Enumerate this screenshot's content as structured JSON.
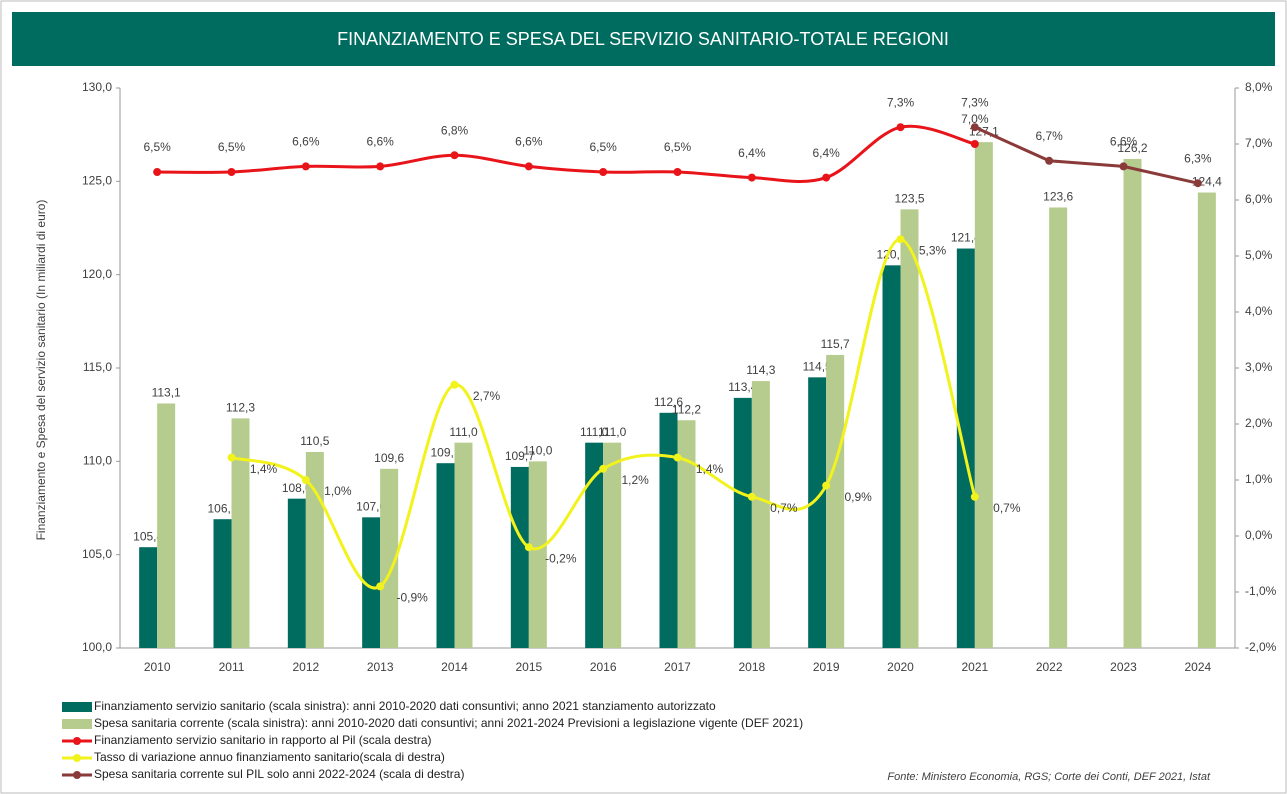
{
  "chart_data": {
    "type": "bar",
    "title": "FINANZIAMENTO E SPESA DEL SERVIZIO SANITARIO-TOTALE REGIONI",
    "y_label": "Finanziamento e Spesa del servizio sanitario (In miliardi di euro)",
    "source": "Fonte: Ministero Economia, RGS; Corte dei Conti, DEF 2021, Istat",
    "categories": [
      "2010",
      "2011",
      "2012",
      "2013",
      "2014",
      "2015",
      "2016",
      "2017",
      "2018",
      "2019",
      "2020",
      "2021",
      "2022",
      "2023",
      "2024"
    ],
    "ylim": [
      100,
      130
    ],
    "yticks": [
      {
        "value": 100,
        "label": "100,0"
      },
      {
        "value": 105,
        "label": "105,0"
      },
      {
        "value": 110,
        "label": "110,0"
      },
      {
        "value": 115,
        "label": "115,0"
      },
      {
        "value": 120,
        "label": "120,0"
      },
      {
        "value": 125,
        "label": "125,0"
      },
      {
        "value": 130,
        "label": "130,0"
      }
    ],
    "y2lim": [
      -2,
      8
    ],
    "y2ticks": [
      {
        "value": -2,
        "label": "-2,0%"
      },
      {
        "value": -1,
        "label": "-1,0%"
      },
      {
        "value": 0,
        "label": "0,0%"
      },
      {
        "value": 1,
        "label": "1,0%"
      },
      {
        "value": 2,
        "label": "2,0%"
      },
      {
        "value": 3,
        "label": "3,0%"
      },
      {
        "value": 4,
        "label": "4,0%"
      },
      {
        "value": 5,
        "label": "5,0%"
      },
      {
        "value": 6,
        "label": "6,0%"
      },
      {
        "value": 7,
        "label": "7,0%"
      },
      {
        "value": 8,
        "label": "8,0%"
      }
    ],
    "series": [
      {
        "name": "Finanziamento servizio sanitario (scala sinistra): anni 2010-2020 dati consuntivi; anno 2021 stanziamento autorizzato",
        "type": "bar",
        "color": "#006b5f",
        "values": [
          105.4,
          106.9,
          108.0,
          107.0,
          109.9,
          109.7,
          111.0,
          112.6,
          113.4,
          114.5,
          120.5,
          121.4,
          null,
          null,
          null
        ],
        "value_labels": [
          "105,4",
          "106,9",
          "108,0",
          "107,0",
          "109,9",
          "109,7",
          "111,0",
          "112,6",
          "113,4",
          "114,5",
          "120,5",
          "121,4",
          null,
          null,
          null
        ]
      },
      {
        "name": "Spesa sanitaria corrente (scala sinistra): anni 2010-2020 dati consuntivi; anni 2021-2024 Previsioni a legislazione vigente (DEF 2021)",
        "type": "bar",
        "color": "#b5cc8e",
        "values": [
          113.1,
          112.3,
          110.5,
          109.6,
          111.0,
          110.0,
          111.0,
          112.2,
          114.3,
          115.7,
          123.5,
          127.1,
          123.6,
          126.2,
          124.4
        ],
        "value_labels": [
          "113,1",
          "112,3",
          "110,5",
          "109,6",
          "111,0",
          "110,0",
          "111,0",
          "112,2",
          "114,3",
          "115,7",
          "123,5",
          "127,1",
          "123,6",
          "126,2",
          "124,4"
        ]
      },
      {
        "name": "Finanziamento servizio sanitario in rapporto al Pil (scala destra)",
        "type": "line",
        "axis": "y2",
        "smooth": true,
        "color": "#e8141a",
        "values": [
          6.5,
          6.5,
          6.6,
          6.6,
          6.8,
          6.6,
          6.5,
          6.5,
          6.4,
          6.4,
          7.3,
          7.0,
          null,
          null,
          null
        ],
        "value_labels": [
          "6,5%",
          "6,5%",
          "6,6%",
          "6,6%",
          "6,8%",
          "6,6%",
          "6,5%",
          "6,5%",
          "6,4%",
          "6,4%",
          "7,3%",
          "7,0%",
          null,
          null,
          null
        ]
      },
      {
        "name": "Tasso di variazione annuo finanziamento sanitario(scala di destra)",
        "type": "line",
        "axis": "y2",
        "smooth": true,
        "color": "#f2f21c",
        "values": [
          null,
          1.4,
          1.0,
          -0.9,
          2.7,
          -0.2,
          1.2,
          1.4,
          0.7,
          0.9,
          5.3,
          0.7,
          null,
          null,
          null
        ],
        "value_labels": [
          null,
          "1,4%",
          "1,0%",
          "-0,9%",
          "2,7%",
          "-0,2%",
          "1,2%",
          "1,4%",
          "0,7%",
          "0,9%",
          "5,3%",
          "0,7%",
          null,
          null,
          null
        ]
      },
      {
        "name": "Spesa sanitaria corrente sul PIL solo anni 2022-2024 (scala di destra)",
        "type": "line",
        "axis": "y2",
        "smooth": false,
        "color": "#8b3a3a",
        "values": [
          null,
          null,
          null,
          null,
          null,
          null,
          null,
          null,
          null,
          null,
          null,
          7.3,
          6.7,
          6.6,
          6.3
        ],
        "value_labels": [
          null,
          null,
          null,
          null,
          null,
          null,
          null,
          null,
          null,
          null,
          null,
          "7,3%",
          "6,7%",
          "6,6%",
          "6,3%"
        ]
      }
    ]
  }
}
